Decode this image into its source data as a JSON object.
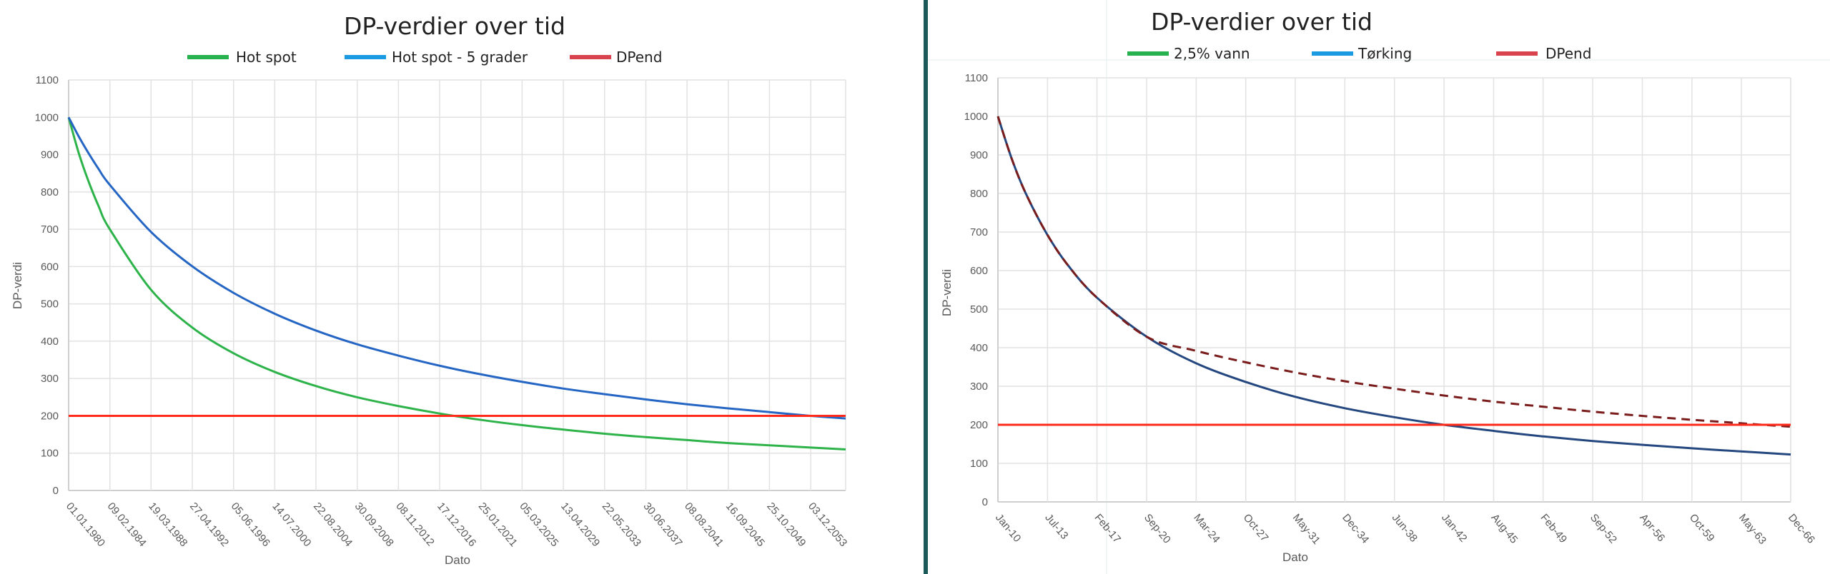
{
  "chart_data": [
    {
      "type": "line",
      "title": "DP-verdier over tid",
      "xlabel": "Dato",
      "ylabel": "DP-verdi",
      "ylim": [
        0,
        1100
      ],
      "yticks": [
        0,
        100,
        200,
        300,
        400,
        500,
        600,
        700,
        800,
        900,
        1000,
        1100
      ],
      "xlim": [
        1980,
        2057.4
      ],
      "grid": true,
      "legend_position": "top",
      "xticks": [
        {
          "label": "01.01.1980",
          "x": 1980.0
        },
        {
          "label": "09.02.1984",
          "x": 1984.11
        },
        {
          "label": "19.03.1988",
          "x": 1988.21
        },
        {
          "label": "27.04.1992",
          "x": 1992.32
        },
        {
          "label": "05.06.1996",
          "x": 1996.43
        },
        {
          "label": "14.07.2000",
          "x": 2000.53
        },
        {
          "label": "22.08.2004",
          "x": 2004.64
        },
        {
          "label": "30.09.2008",
          "x": 2008.75
        },
        {
          "label": "08.11.2012",
          "x": 2012.85
        },
        {
          "label": "17.12.2016",
          "x": 2016.96
        },
        {
          "label": "25.01.2021",
          "x": 2021.07
        },
        {
          "label": "05.03.2025",
          "x": 2025.17
        },
        {
          "label": "13.04.2029",
          "x": 2029.28
        },
        {
          "label": "22.05.2033",
          "x": 2033.39
        },
        {
          "label": "30.06.2037",
          "x": 2037.5
        },
        {
          "label": "08.08.2041",
          "x": 2041.6
        },
        {
          "label": "16.09.2045",
          "x": 2045.71
        },
        {
          "label": "25.10.2049",
          "x": 2049.81
        },
        {
          "label": "03.12.2053",
          "x": 2053.92
        }
      ],
      "series": [
        {
          "name": "Hot spot",
          "color": "#2db34a",
          "legend_color": "#27b14f",
          "dashed": false,
          "points": [
            [
              1980,
              1000
            ],
            [
              1981,
              905
            ],
            [
              1982,
              827
            ],
            [
              1983,
              761
            ],
            [
              1984.1,
              700
            ],
            [
              1988.2,
              538
            ],
            [
              1992.3,
              437
            ],
            [
              1996.4,
              368
            ],
            [
              2000.5,
              318
            ],
            [
              2004.6,
              280
            ],
            [
              2008.7,
              250
            ],
            [
              2012.9,
              226
            ],
            [
              2017.0,
              206
            ],
            [
              2021.1,
              189
            ],
            [
              2025.2,
              175
            ],
            [
              2029.3,
              163
            ],
            [
              2033.4,
              152
            ],
            [
              2037.5,
              143
            ],
            [
              2041.6,
              135
            ],
            [
              2045.7,
              127
            ],
            [
              2049.8,
              121
            ],
            [
              2053.9,
              115
            ],
            [
              2057.4,
              110
            ]
          ]
        },
        {
          "name": "Hot spot - 5 grader",
          "color": "#2566c4",
          "legend_color": "#1a9ae0",
          "dashed": false,
          "points": [
            [
              1980,
              1000
            ],
            [
              1981,
              949
            ],
            [
              1982,
              903
            ],
            [
              1983,
              861
            ],
            [
              1984.1,
              819
            ],
            [
              1988.2,
              693
            ],
            [
              1992.3,
              601
            ],
            [
              1996.4,
              530
            ],
            [
              2000.5,
              474
            ],
            [
              2004.6,
              429
            ],
            [
              2008.7,
              392
            ],
            [
              2012.9,
              361
            ],
            [
              2017.0,
              334
            ],
            [
              2021.1,
              311
            ],
            [
              2025.2,
              291
            ],
            [
              2029.3,
              273
            ],
            [
              2033.4,
              258
            ],
            [
              2037.5,
              244
            ],
            [
              2041.6,
              231
            ],
            [
              2045.7,
              220
            ],
            [
              2049.8,
              210
            ],
            [
              2053.9,
              200
            ],
            [
              2057.4,
              193
            ]
          ]
        },
        {
          "name": "DPend",
          "color": "#ff2a1a",
          "legend_color": "#d9434d",
          "dashed": false,
          "points": [
            [
              1980,
              200
            ],
            [
              2057.4,
              200
            ]
          ]
        }
      ]
    },
    {
      "type": "line",
      "title": "DP-verdier over tid",
      "xlabel": "Dato",
      "ylabel": "DP-verdi",
      "ylim": [
        0,
        1100
      ],
      "yticks": [
        0,
        100,
        200,
        300,
        400,
        500,
        600,
        700,
        800,
        900,
        1000,
        1100
      ],
      "xlim": [
        2010,
        2066.9
      ],
      "grid": true,
      "legend_position": "top",
      "xticks": [
        {
          "label": "Jan-10",
          "x": 2010.0
        },
        {
          "label": "Jul-13",
          "x": 2013.56
        },
        {
          "label": "Feb-17",
          "x": 2017.11
        },
        {
          "label": "Sep-20",
          "x": 2020.67
        },
        {
          "label": "Mar-24",
          "x": 2024.23
        },
        {
          "label": "Oct-27",
          "x": 2027.79
        },
        {
          "label": "May-31",
          "x": 2031.34
        },
        {
          "label": "Dec-34",
          "x": 2034.9
        },
        {
          "label": "Jun-38",
          "x": 2038.46
        },
        {
          "label": "Jan-42",
          "x": 2042.02
        },
        {
          "label": "Aug-45",
          "x": 2045.58
        },
        {
          "label": "Feb-49",
          "x": 2049.13
        },
        {
          "label": "Sep-52",
          "x": 2052.69
        },
        {
          "label": "Apr-56",
          "x": 2056.25
        },
        {
          "label": "Oct-59",
          "x": 2059.81
        },
        {
          "label": "May-63",
          "x": 2063.36
        },
        {
          "label": "Dec-66",
          "x": 2066.9
        }
      ],
      "series": [
        {
          "name": "2,5% vann",
          "color": "#24477f",
          "legend_color": "#27b14f",
          "dashed": false,
          "points": [
            [
              2010,
              1000
            ],
            [
              2011,
              889
            ],
            [
              2012,
              800
            ],
            [
              2013.5,
              696
            ],
            [
              2015,
              615
            ],
            [
              2017.1,
              530
            ],
            [
              2020.7,
              428
            ],
            [
              2024.2,
              360
            ],
            [
              2027.8,
              311
            ],
            [
              2031.3,
              273
            ],
            [
              2034.9,
              243
            ],
            [
              2038.4,
              220
            ],
            [
              2042.0,
              200
            ],
            [
              2045.6,
              184
            ],
            [
              2049.1,
              170
            ],
            [
              2052.7,
              158
            ],
            [
              2056.3,
              148
            ],
            [
              2059.8,
              139
            ],
            [
              2063.3,
              131
            ],
            [
              2066.9,
              123
            ]
          ]
        },
        {
          "name": "Tørking",
          "color": "#7a1c1c",
          "legend_color": "#1a9ae0",
          "dashed": true,
          "points": [
            [
              2010,
              1000
            ],
            [
              2011,
              889
            ],
            [
              2012,
              800
            ],
            [
              2013.5,
              696
            ],
            [
              2015,
              615
            ],
            [
              2017.1,
              530
            ],
            [
              2020.7,
              428
            ],
            [
              2024.2,
              392
            ],
            [
              2027.8,
              362
            ],
            [
              2031.3,
              336
            ],
            [
              2034.9,
              313
            ],
            [
              2038.4,
              294
            ],
            [
              2042.0,
              276
            ],
            [
              2045.6,
              260
            ],
            [
              2049.1,
              247
            ],
            [
              2052.7,
              234
            ],
            [
              2056.3,
              223
            ],
            [
              2059.8,
              213
            ],
            [
              2063.3,
              204
            ],
            [
              2066.9,
              195
            ]
          ]
        },
        {
          "name": "DPend",
          "color": "#ff2a1a",
          "legend_color": "#d9434d",
          "dashed": false,
          "points": [
            [
              2010,
              200
            ],
            [
              2066.9,
              200
            ]
          ]
        }
      ]
    }
  ],
  "divider_color": "#1b5a58"
}
